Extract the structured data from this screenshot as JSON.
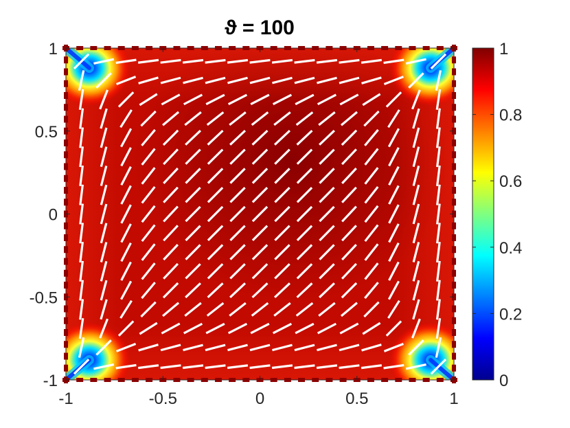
{
  "chart_data": {
    "type": "heatmap",
    "title": "ϑ = 100",
    "xlabel": "",
    "ylabel": "",
    "xlim": [
      -1,
      1
    ],
    "ylim": [
      -1,
      1
    ],
    "x_ticks": [
      -1,
      -0.5,
      0,
      0.5,
      1
    ],
    "y_ticks": [
      -1,
      -0.5,
      0,
      0.5,
      1
    ],
    "x_tick_labels": [
      "-1",
      "-0.5",
      "0",
      "0.5",
      "1"
    ],
    "y_tick_labels": [
      "-1",
      "-0.5",
      "0",
      "0.5",
      "1"
    ],
    "colorbar": {
      "range": [
        0,
        1
      ],
      "ticks": [
        0,
        0.2,
        0.4,
        0.6,
        0.8,
        1
      ],
      "tick_labels": [
        "0",
        "0.2",
        "0.4",
        "0.6",
        "0.8",
        "1"
      ],
      "colormap": "jet"
    },
    "field_description": "order parameter near 1 in interior, dropping toward 0 at the four corners",
    "director_field": {
      "grid_n": 17,
      "color": "#ffffff",
      "boundary_color": "#8b0000"
    }
  }
}
